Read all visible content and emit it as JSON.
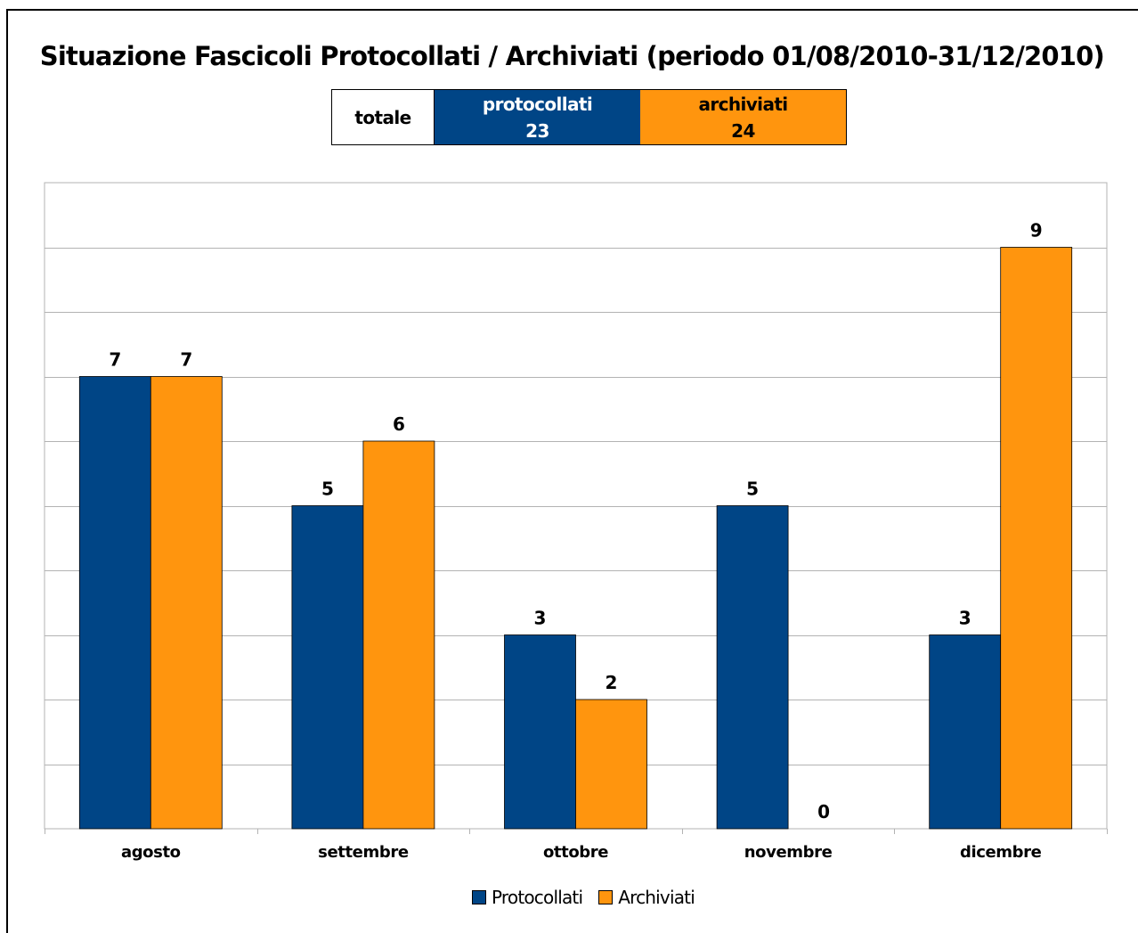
{
  "chart_data": {
    "type": "bar",
    "title": "Situazione Fascicoli Protocollati / Archiviati (periodo 01/08/2010-31/12/2010)",
    "categories": [
      "agosto",
      "settembre",
      "ottobre",
      "novembre",
      "dicembre"
    ],
    "series": [
      {
        "name": "Protocollati",
        "values": [
          7,
          5,
          3,
          5,
          3
        ],
        "color": "#004586"
      },
      {
        "name": "Archiviati",
        "values": [
          7,
          6,
          2,
          0,
          9
        ],
        "color": "#ff950e"
      }
    ],
    "ylim": [
      0,
      10
    ],
    "y_tick_step": 1,
    "grid": true,
    "y_tick_labels_shown": false,
    "data_labels": true,
    "legend_position": "bottom"
  },
  "totals": {
    "label": "totale",
    "protocollati_label": "protocollati",
    "protocollati_value": "23",
    "archiviati_label": "archiviati",
    "archiviati_value": "24"
  }
}
